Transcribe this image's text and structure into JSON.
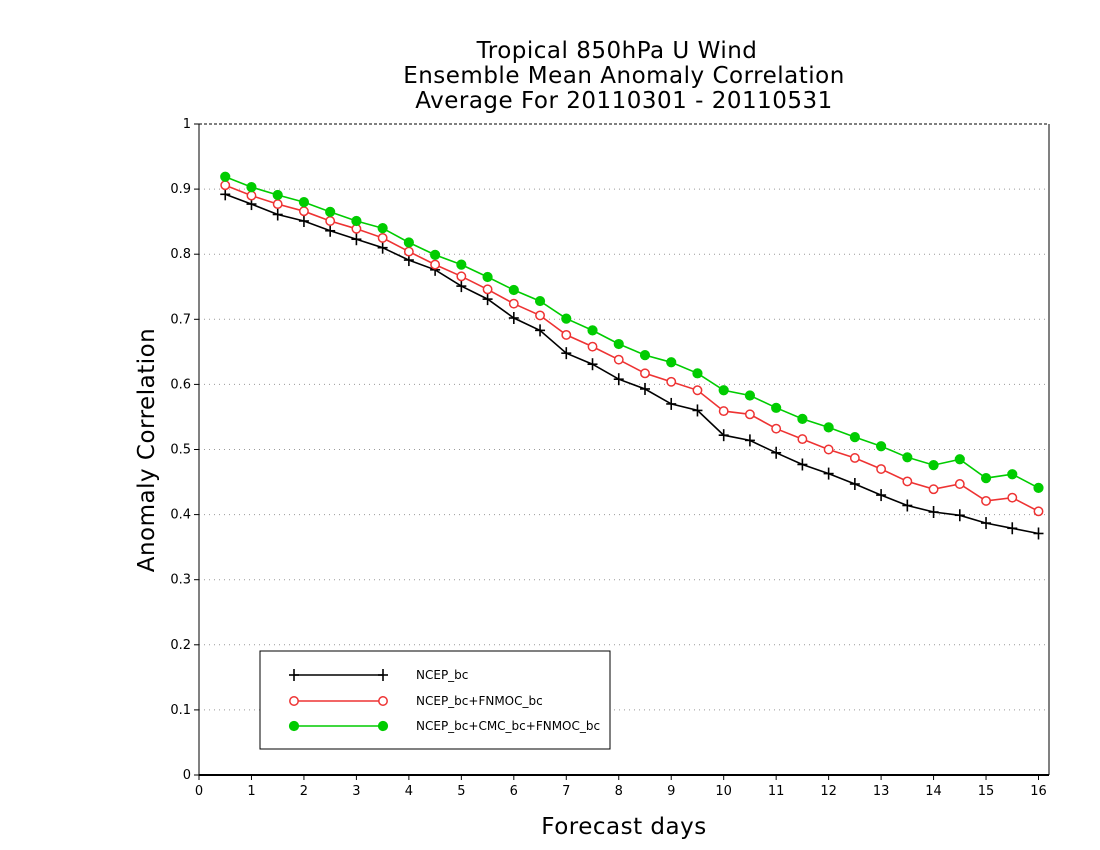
{
  "chart_data": {
    "type": "line",
    "title": [
      "Tropical 850hPa U Wind",
      "Ensemble Mean Anomaly Correlation",
      "Average For 20110301 - 20110531"
    ],
    "xlabel": "Forecast days",
    "ylabel": "Anomaly Correlation",
    "xlim": [
      0,
      16.2
    ],
    "ylim": [
      0,
      1
    ],
    "xticks": [
      0,
      1,
      2,
      3,
      4,
      5,
      6,
      7,
      8,
      9,
      10,
      11,
      12,
      13,
      14,
      15,
      16
    ],
    "yticks": [
      0,
      0.1,
      0.2,
      0.3,
      0.4,
      0.5,
      0.6,
      0.7,
      0.8,
      0.9,
      1
    ],
    "xtick_labels": [
      "0",
      "1",
      "2",
      "3",
      "4",
      "5",
      "6",
      "7",
      "8",
      "9",
      "10",
      "11",
      "12",
      "13",
      "14",
      "15",
      "16"
    ],
    "ytick_labels": [
      "0",
      "0.1",
      "0.2",
      "0.3",
      "0.4",
      "0.5",
      "0.6",
      "0.7",
      "0.8",
      "0.9",
      "1"
    ],
    "grid": "horizontal dotted",
    "legend_placement": "lower-left",
    "x": [
      0.5,
      1,
      1.5,
      2,
      2.5,
      3,
      3.5,
      4,
      4.5,
      5,
      5.5,
      6,
      6.5,
      7,
      7.5,
      8,
      8.5,
      9,
      9.5,
      10,
      10.5,
      11,
      11.5,
      12,
      12.5,
      13,
      13.5,
      14,
      14.5,
      15,
      15.5,
      16
    ],
    "series": [
      {
        "name": "NCEP_bc",
        "color": "#000000",
        "marker": "plus",
        "values": [
          0.892,
          0.877,
          0.861,
          0.851,
          0.836,
          0.823,
          0.81,
          0.791,
          0.776,
          0.751,
          0.731,
          0.702,
          0.683,
          0.648,
          0.631,
          0.608,
          0.593,
          0.57,
          0.56,
          0.522,
          0.514,
          0.495,
          0.477,
          0.463,
          0.447,
          0.43,
          0.414,
          0.404,
          0.399,
          0.387,
          0.379,
          0.371
        ]
      },
      {
        "name": "NCEP_bc+FNMOC_bc",
        "color": "#ee3333",
        "marker": "open-circle",
        "values": [
          0.906,
          0.89,
          0.877,
          0.866,
          0.851,
          0.839,
          0.825,
          0.804,
          0.784,
          0.766,
          0.746,
          0.724,
          0.706,
          0.676,
          0.658,
          0.638,
          0.617,
          0.604,
          0.591,
          0.559,
          0.554,
          0.532,
          0.516,
          0.5,
          0.487,
          0.47,
          0.451,
          0.439,
          0.447,
          0.421,
          0.426,
          0.405
        ]
      },
      {
        "name": "NCEP_bc+CMC_bc+FNMOC_bc",
        "color": "#00cc00",
        "marker": "filled-circle",
        "values": [
          0.919,
          0.903,
          0.891,
          0.88,
          0.865,
          0.851,
          0.84,
          0.818,
          0.799,
          0.784,
          0.765,
          0.745,
          0.728,
          0.701,
          0.683,
          0.662,
          0.645,
          0.634,
          0.617,
          0.591,
          0.583,
          0.564,
          0.547,
          0.534,
          0.519,
          0.505,
          0.488,
          0.476,
          0.485,
          0.456,
          0.462,
          0.441
        ]
      }
    ]
  }
}
